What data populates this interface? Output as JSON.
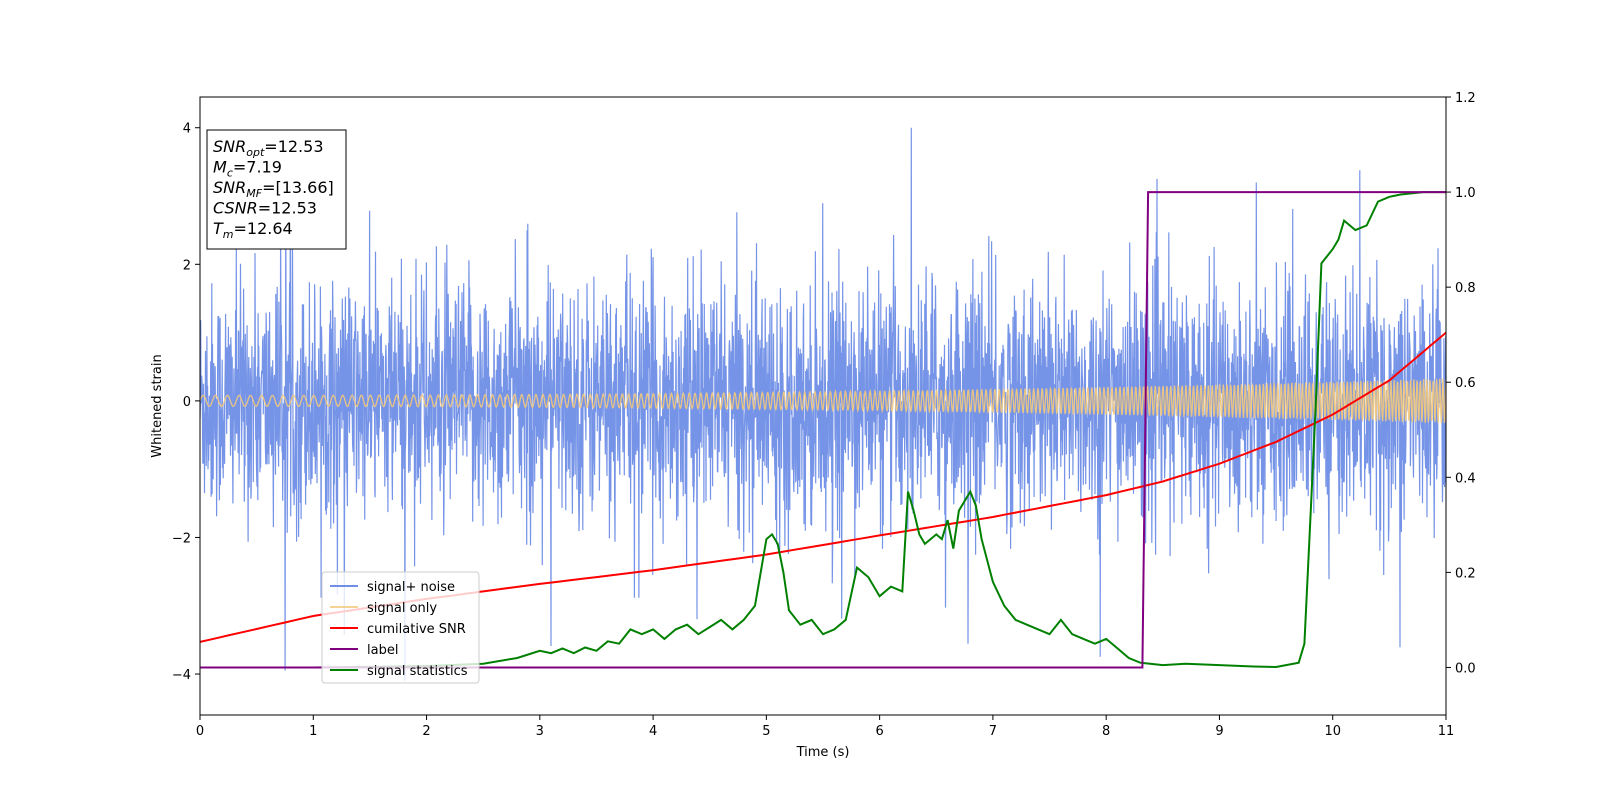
{
  "chart_data": {
    "type": "line",
    "xlabel": "Time (s)",
    "ylabel": "Whitened strain",
    "xlim": [
      0,
      11
    ],
    "ylim_left": [
      -4.6,
      4.45
    ],
    "ylim_right": [
      -0.1,
      1.2
    ],
    "x_ticks": [
      0,
      1,
      2,
      3,
      4,
      5,
      6,
      7,
      8,
      9,
      10,
      11
    ],
    "y_ticks_left": [
      -4,
      -2,
      0,
      2,
      4
    ],
    "y_ticks_right": [
      0.0,
      0.2,
      0.4,
      0.6,
      0.8,
      1.0,
      1.2
    ],
    "grid": false,
    "legend_position": "lower-left",
    "series": [
      {
        "name": "signal+ noise",
        "axis": "left",
        "color": "#6f8ee6",
        "style": "dense noise, amplitude roughly ±2 with spikes up to about ±4",
        "envelope_typical": 1.8,
        "spike_max": 4.0
      },
      {
        "name": "signal only",
        "axis": "left",
        "color": "#f5c97a",
        "style": "chirp oscillation",
        "amplitude_start": 0.08,
        "amplitude_end": 0.33
      },
      {
        "name": "cumilative SNR",
        "axis": "left",
        "color": "#ff0000",
        "x": [
          0,
          1,
          2,
          3,
          4,
          5,
          6,
          7,
          8,
          8.5,
          9,
          9.5,
          10,
          10.5,
          11
        ],
        "y": [
          -3.53,
          -3.15,
          -2.9,
          -2.68,
          -2.48,
          -2.25,
          -1.97,
          -1.7,
          -1.38,
          -1.18,
          -0.92,
          -0.6,
          -0.2,
          0.3,
          1.0
        ]
      },
      {
        "name": "label",
        "axis": "right",
        "color": "#800080",
        "x": [
          0,
          8.32,
          8.37,
          11
        ],
        "y": [
          0.0,
          0.0,
          1.0,
          1.0
        ]
      },
      {
        "name": "signal statistics",
        "axis": "right",
        "color": "#008000",
        "x": [
          0,
          1,
          2,
          2.5,
          2.8,
          3.0,
          3.1,
          3.2,
          3.3,
          3.4,
          3.5,
          3.6,
          3.7,
          3.8,
          3.9,
          4.0,
          4.1,
          4.2,
          4.3,
          4.4,
          4.5,
          4.6,
          4.7,
          4.8,
          4.9,
          5.0,
          5.05,
          5.1,
          5.15,
          5.2,
          5.3,
          5.4,
          5.5,
          5.6,
          5.7,
          5.8,
          5.9,
          6.0,
          6.1,
          6.2,
          6.25,
          6.3,
          6.35,
          6.4,
          6.5,
          6.55,
          6.6,
          6.65,
          6.7,
          6.75,
          6.8,
          6.85,
          6.9,
          7.0,
          7.1,
          7.2,
          7.3,
          7.4,
          7.5,
          7.6,
          7.7,
          7.8,
          7.9,
          8.0,
          8.1,
          8.2,
          8.3,
          8.5,
          8.7,
          9.0,
          9.3,
          9.5,
          9.7,
          9.75,
          9.8,
          9.85,
          9.9,
          10.0,
          10.05,
          10.1,
          10.2,
          10.3,
          10.4,
          10.5,
          10.6,
          10.8,
          11.0
        ],
        "y": [
          0.0,
          0.0,
          0.003,
          0.008,
          0.02,
          0.035,
          0.03,
          0.04,
          0.03,
          0.042,
          0.035,
          0.055,
          0.05,
          0.08,
          0.07,
          0.08,
          0.06,
          0.08,
          0.09,
          0.07,
          0.085,
          0.1,
          0.08,
          0.1,
          0.13,
          0.27,
          0.28,
          0.26,
          0.2,
          0.12,
          0.09,
          0.1,
          0.07,
          0.08,
          0.1,
          0.21,
          0.19,
          0.15,
          0.17,
          0.16,
          0.37,
          0.33,
          0.28,
          0.26,
          0.28,
          0.27,
          0.31,
          0.25,
          0.33,
          0.35,
          0.37,
          0.34,
          0.27,
          0.18,
          0.13,
          0.1,
          0.09,
          0.08,
          0.07,
          0.1,
          0.07,
          0.06,
          0.05,
          0.06,
          0.04,
          0.02,
          0.01,
          0.005,
          0.008,
          0.005,
          0.002,
          0.001,
          0.01,
          0.05,
          0.3,
          0.55,
          0.85,
          0.88,
          0.9,
          0.94,
          0.92,
          0.93,
          0.98,
          0.99,
          0.995,
          1.0,
          1.0
        ]
      }
    ],
    "annotation": {
      "lines": [
        {
          "symbol": "SNR",
          "subscript": "opt",
          "value": "=12.53"
        },
        {
          "symbol": "M",
          "subscript": "c",
          "value": "=7.19"
        },
        {
          "symbol": "SNR",
          "subscript": "MF",
          "value": "=[13.66]"
        },
        {
          "symbol": "CSNR",
          "subscript": "",
          "value": "=12.53"
        },
        {
          "symbol": "T",
          "subscript": "m",
          "value": "=12.64"
        }
      ]
    }
  }
}
